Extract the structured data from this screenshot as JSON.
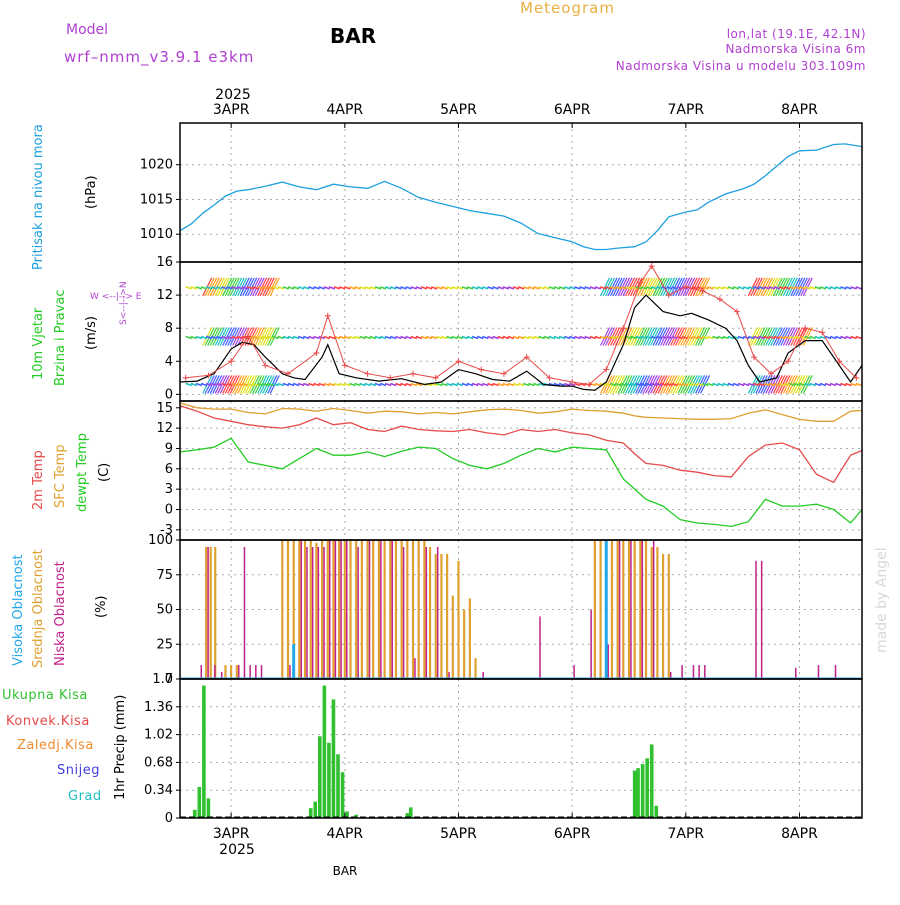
{
  "header": {
    "model_label": "Model",
    "model_name": "wrf–nmm_v3.9.1 e3km",
    "title": "BAR",
    "meteogram_label": "Meteogram",
    "location": "lon,lat (19.1E, 42.1N)",
    "altitude": "Nadmorska Visina 6m",
    "model_altitude": "Nadmorska Visina u modelu 303.109m",
    "footer_station": "BAR",
    "credit": "made by Angel"
  },
  "time_axis": {
    "year_label": "2025",
    "days": [
      "3APR",
      "4APR",
      "5APR",
      "6APR",
      "7APR",
      "8APR"
    ],
    "day_positions": [
      3,
      4,
      5,
      6,
      7,
      8
    ],
    "range": [
      2.55,
      8.55
    ]
  },
  "colors": {
    "pressure": "#1e9fe0",
    "temp2m": "#e84a4a",
    "sfc_temp": "#e0a030",
    "dewpoint": "#22cc22",
    "wind_speed": "#000000",
    "gust": "#e84a4a",
    "cloud_high": "#22a8e8",
    "cloud_mid": "#e0a030",
    "cloud_low": "#c0208a",
    "total_precip": "#30c030",
    "convective": "#e84a4a",
    "freezing": "#f08a30",
    "snow": "#4040e0",
    "hail": "#20c0c0",
    "header_purple": "#b040d0",
    "meteogram_orange": "#e8b040",
    "credit_gray": "#d8d8d8"
  },
  "chart_data": [
    {
      "type": "line",
      "name": "pressure",
      "title": "Pritisak na nivou mora",
      "ylabel": "(hPa)",
      "ylim": [
        1006,
        1026
      ],
      "yticks": [
        1010,
        1015,
        1020
      ],
      "x": [
        2.55,
        2.65,
        2.75,
        2.85,
        2.95,
        3.05,
        3.15,
        3.3,
        3.45,
        3.6,
        3.75,
        3.9,
        4.05,
        4.2,
        4.35,
        4.5,
        4.65,
        4.8,
        4.95,
        5.1,
        5.25,
        5.4,
        5.55,
        5.7,
        5.85,
        6.0,
        6.1,
        6.2,
        6.3,
        6.4,
        6.55,
        6.65,
        6.75,
        6.85,
        7.0,
        7.1,
        7.2,
        7.35,
        7.5,
        7.6,
        7.7,
        7.8,
        7.9,
        8.0,
        8.15,
        8.3,
        8.4,
        8.55
      ],
      "values": [
        1010.5,
        1011.5,
        1013,
        1014.2,
        1015.5,
        1016.2,
        1016.4,
        1016.9,
        1017.5,
        1016.8,
        1016.4,
        1017.2,
        1016.8,
        1016.6,
        1017.6,
        1016.6,
        1015.3,
        1014.6,
        1014.0,
        1013.4,
        1013.0,
        1012.6,
        1011.6,
        1010.1,
        1009.5,
        1008.9,
        1008.2,
        1007.8,
        1007.8,
        1008.0,
        1008.2,
        1008.9,
        1010.5,
        1012.5,
        1013.2,
        1013.5,
        1014.6,
        1015.8,
        1016.5,
        1017.2,
        1018.4,
        1019.8,
        1021.2,
        1022.0,
        1022.1,
        1022.9,
        1023.0,
        1022.6
      ]
    },
    {
      "type": "line",
      "name": "wind",
      "title": "10m Vjetar Brzina i Pravac",
      "ylabel": "(m/s)",
      "compass_label": "N W E S",
      "ylim": [
        -0.8,
        16
      ],
      "yticks": [
        0,
        4,
        8,
        12,
        16
      ],
      "x": [
        2.55,
        2.7,
        2.85,
        3.0,
        3.1,
        3.2,
        3.3,
        3.45,
        3.55,
        3.65,
        3.8,
        3.85,
        3.95,
        4.1,
        4.3,
        4.5,
        4.7,
        4.85,
        5.0,
        5.15,
        5.3,
        5.45,
        5.6,
        5.75,
        5.9,
        6.0,
        6.1,
        6.2,
        6.3,
        6.45,
        6.55,
        6.65,
        6.8,
        6.95,
        7.05,
        7.2,
        7.35,
        7.45,
        7.55,
        7.65,
        7.8,
        7.9,
        8.05,
        8.2,
        8.3,
        8.45,
        8.55
      ],
      "values": [
        1.5,
        1.6,
        2.5,
        5.5,
        6.3,
        6.0,
        4.5,
        2.5,
        2.0,
        1.8,
        4.5,
        6.0,
        2.5,
        2.0,
        1.6,
        1.9,
        1.2,
        1.5,
        3.0,
        2.5,
        1.8,
        1.6,
        2.8,
        1.2,
        1.0,
        1.0,
        0.6,
        0.5,
        1.5,
        6.0,
        10.5,
        12.0,
        10.0,
        9.5,
        9.8,
        9.0,
        8.0,
        6.5,
        3.5,
        1.5,
        2.0,
        5.0,
        6.5,
        6.5,
        4.5,
        1.5,
        3.5
      ],
      "gust_x": [
        2.6,
        2.8,
        3.0,
        3.15,
        3.3,
        3.5,
        3.75,
        3.85,
        4.0,
        4.2,
        4.4,
        4.6,
        4.8,
        5.0,
        5.2,
        5.4,
        5.6,
        5.8,
        6.0,
        6.15,
        6.3,
        6.45,
        6.6,
        6.7,
        6.85,
        7.0,
        7.15,
        7.3,
        7.45,
        7.6,
        7.75,
        7.9,
        8.05,
        8.2,
        8.35,
        8.5
      ],
      "gust_values": [
        2.0,
        2.3,
        4.0,
        7.0,
        3.5,
        2.5,
        5.0,
        9.5,
        3.5,
        2.5,
        2.0,
        2.5,
        2.0,
        4.0,
        3.0,
        2.5,
        4.5,
        2.0,
        1.5,
        1.2,
        3.0,
        8.0,
        13.5,
        15.5,
        12.0,
        13.0,
        12.5,
        11.5,
        10.0,
        4.5,
        2.5,
        4.0,
        8.0,
        7.5,
        4.0,
        2.0
      ]
    },
    {
      "type": "line",
      "name": "temperature",
      "title": "2m Temp",
      "title2": "SFC Temp",
      "title3": "dewpt Temp",
      "ylabel": "(C)",
      "ylim": [
        -4.5,
        16
      ],
      "yticks": [
        -3,
        0,
        3,
        6,
        9,
        12,
        15
      ],
      "x": [
        2.55,
        2.7,
        2.85,
        3.0,
        3.15,
        3.3,
        3.45,
        3.6,
        3.75,
        3.9,
        4.05,
        4.2,
        4.35,
        4.5,
        4.65,
        4.8,
        4.95,
        5.1,
        5.25,
        5.4,
        5.55,
        5.7,
        5.85,
        6.0,
        6.15,
        6.3,
        6.45,
        6.55,
        6.65,
        6.8,
        6.95,
        7.1,
        7.25,
        7.4,
        7.55,
        7.7,
        7.85,
        8.0,
        8.15,
        8.3,
        8.45,
        8.55
      ],
      "temp2m": [
        15.3,
        14.5,
        13.5,
        13.0,
        12.5,
        12.2,
        12.0,
        12.5,
        13.5,
        12.5,
        12.8,
        11.8,
        11.5,
        12.3,
        11.8,
        11.6,
        11.5,
        11.8,
        11.3,
        11.0,
        11.8,
        11.5,
        11.8,
        11.3,
        11.0,
        10.2,
        9.8,
        8.2,
        6.8,
        6.5,
        5.8,
        5.5,
        5.0,
        4.8,
        7.8,
        9.5,
        9.8,
        8.8,
        5.2,
        4.0,
        8.0,
        8.7
      ],
      "sfc_temp": [
        15.7,
        15.0,
        14.8,
        14.8,
        14.3,
        14.1,
        14.9,
        14.8,
        14.5,
        14.9,
        14.6,
        14.2,
        14.5,
        14.4,
        14.1,
        14.3,
        14.1,
        14.4,
        14.7,
        14.8,
        14.6,
        14.2,
        14.4,
        14.8,
        14.6,
        14.5,
        14.2,
        13.8,
        13.6,
        13.5,
        13.4,
        13.3,
        13.3,
        13.4,
        14.2,
        14.7,
        14.0,
        13.3,
        13.0,
        13.0,
        14.5,
        14.6
      ],
      "dewpoint": [
        8.5,
        8.8,
        9.2,
        10.5,
        7.0,
        6.5,
        6.0,
        7.5,
        9.0,
        8.0,
        8.0,
        8.5,
        7.8,
        8.6,
        9.2,
        9.0,
        7.5,
        6.5,
        6.0,
        6.8,
        8.0,
        9.0,
        8.5,
        9.2,
        9.0,
        8.8,
        4.5,
        3.0,
        1.5,
        0.5,
        -1.5,
        -2.0,
        -2.2,
        -2.5,
        -1.8,
        1.5,
        0.5,
        0.5,
        0.8,
        0.0,
        -2.0,
        0.0
      ]
    },
    {
      "type": "bar",
      "name": "clouds",
      "title": "Visoka Oblacnost",
      "title2": "Srednja Oblacnost",
      "title3": "Niska Oblacnost",
      "ylabel": "(%)",
      "ylim": [
        0,
        100
      ],
      "yticks": [
        0,
        25,
        50,
        75,
        100
      ],
      "mid_x": [
        2.78,
        2.82,
        2.86,
        2.95,
        3.0,
        3.05,
        3.45,
        3.5,
        3.55,
        3.6,
        3.65,
        3.7,
        3.75,
        3.8,
        3.85,
        3.9,
        3.95,
        4.0,
        4.05,
        4.1,
        4.15,
        4.2,
        4.25,
        4.3,
        4.35,
        4.4,
        4.45,
        4.5,
        4.55,
        4.6,
        4.65,
        4.7,
        4.75,
        4.8,
        4.85,
        4.9,
        4.95,
        5.0,
        5.05,
        5.1,
        5.15,
        6.2,
        6.25,
        6.3,
        6.35,
        6.4,
        6.45,
        6.5,
        6.55,
        6.6,
        6.65,
        6.7,
        6.75,
        6.8,
        6.85
      ],
      "mid_values": [
        95,
        95,
        95,
        10,
        10,
        10,
        100,
        100,
        100,
        100,
        100,
        100,
        98,
        100,
        100,
        100,
        100,
        100,
        100,
        100,
        100,
        100,
        100,
        100,
        100,
        100,
        100,
        100,
        100,
        100,
        100,
        100,
        95,
        90,
        90,
        90,
        60,
        85,
        50,
        58,
        15,
        100,
        100,
        100,
        100,
        100,
        100,
        100,
        100,
        100,
        100,
        95,
        95,
        90,
        90
      ],
      "high_x": [
        3.55,
        6.3
      ],
      "high_values": [
        25,
        100
      ],
      "low_x": [
        2.72,
        2.78,
        2.84,
        2.9,
        3.05,
        3.1,
        3.15,
        3.2,
        3.25,
        3.5,
        3.6,
        3.65,
        3.7,
        3.75,
        3.8,
        3.85,
        3.9,
        3.95,
        4.0,
        4.1,
        4.2,
        4.3,
        4.4,
        4.5,
        4.6,
        4.7,
        4.8,
        4.9,
        5.2,
        5.7,
        6.0,
        6.15,
        6.3,
        6.4,
        6.5,
        6.6,
        6.7,
        6.85,
        6.95,
        7.05,
        7.1,
        7.15,
        7.6,
        7.65,
        7.95,
        8.15,
        8.3
      ],
      "low_values": [
        10,
        95,
        10,
        5,
        10,
        95,
        10,
        10,
        10,
        10,
        100,
        95,
        95,
        95,
        95,
        100,
        100,
        100,
        100,
        95,
        100,
        100,
        100,
        95,
        15,
        95,
        95,
        5,
        5,
        45,
        10,
        50,
        25,
        100,
        100,
        100,
        100,
        5,
        10,
        10,
        10,
        10,
        85,
        85,
        8,
        10,
        10
      ]
    },
    {
      "type": "bar",
      "name": "precipitation",
      "title": "Ukupna Kisa",
      "title2": "Konvek.Kisa",
      "title3": "Zaledj.Kisa",
      "title4": "Snijeg",
      "title5": "Grad",
      "ylabel": "1hr Precip (mm)",
      "ylim": [
        0,
        1.7
      ],
      "yticks": [
        0,
        0.34,
        0.68,
        1.02,
        1.36,
        1.7
      ],
      "x": [
        2.68,
        2.72,
        2.76,
        2.8,
        3.7,
        3.74,
        3.78,
        3.82,
        3.86,
        3.9,
        3.94,
        3.98,
        4.02,
        4.1,
        4.55,
        4.58,
        6.55,
        6.58,
        6.62,
        6.66,
        6.7,
        6.74,
        6.78
      ],
      "values": [
        0.1,
        0.38,
        1.62,
        0.24,
        0.12,
        0.2,
        1.0,
        1.62,
        0.92,
        1.45,
        0.78,
        0.56,
        0.08,
        0.04,
        0.06,
        0.13,
        0.58,
        0.61,
        0.66,
        0.73,
        0.9,
        0.15,
        0.02
      ]
    }
  ],
  "footer": {
    "year_label": "2025"
  }
}
